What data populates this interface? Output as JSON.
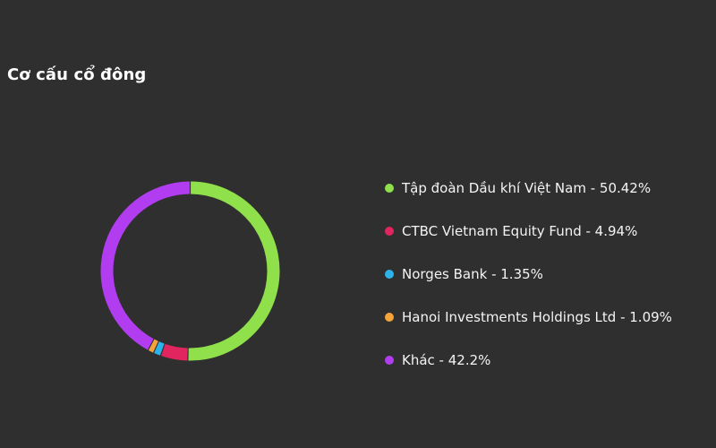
{
  "header": {
    "title": "Cơ cấu cổ đông"
  },
  "chart_data": {
    "type": "pie",
    "slices": [
      {
        "label": "Tập đoàn Dầu khí Việt Nam",
        "value": 50.42,
        "color": "#8fe04a",
        "legend": "Tập đoàn Dầu khí Việt Nam - 50.42%"
      },
      {
        "label": "CTBC Vietnam Equity Fund",
        "value": 4.94,
        "color": "#e0255f",
        "legend": "CTBC Vietnam Equity Fund - 4.94%"
      },
      {
        "label": "Norges Bank",
        "value": 1.35,
        "color": "#2cb4e8",
        "legend": "Norges Bank - 1.35%"
      },
      {
        "label": "Hanoi Investments Holdings Ltd",
        "value": 1.09,
        "color": "#f5a33b",
        "legend": "Hanoi Investments Holdings Ltd - 1.09%"
      },
      {
        "label": "Khác",
        "value": 42.2,
        "color": "#b23df0",
        "legend": "Khác - 42.2%"
      }
    ],
    "legend_position": "right"
  }
}
